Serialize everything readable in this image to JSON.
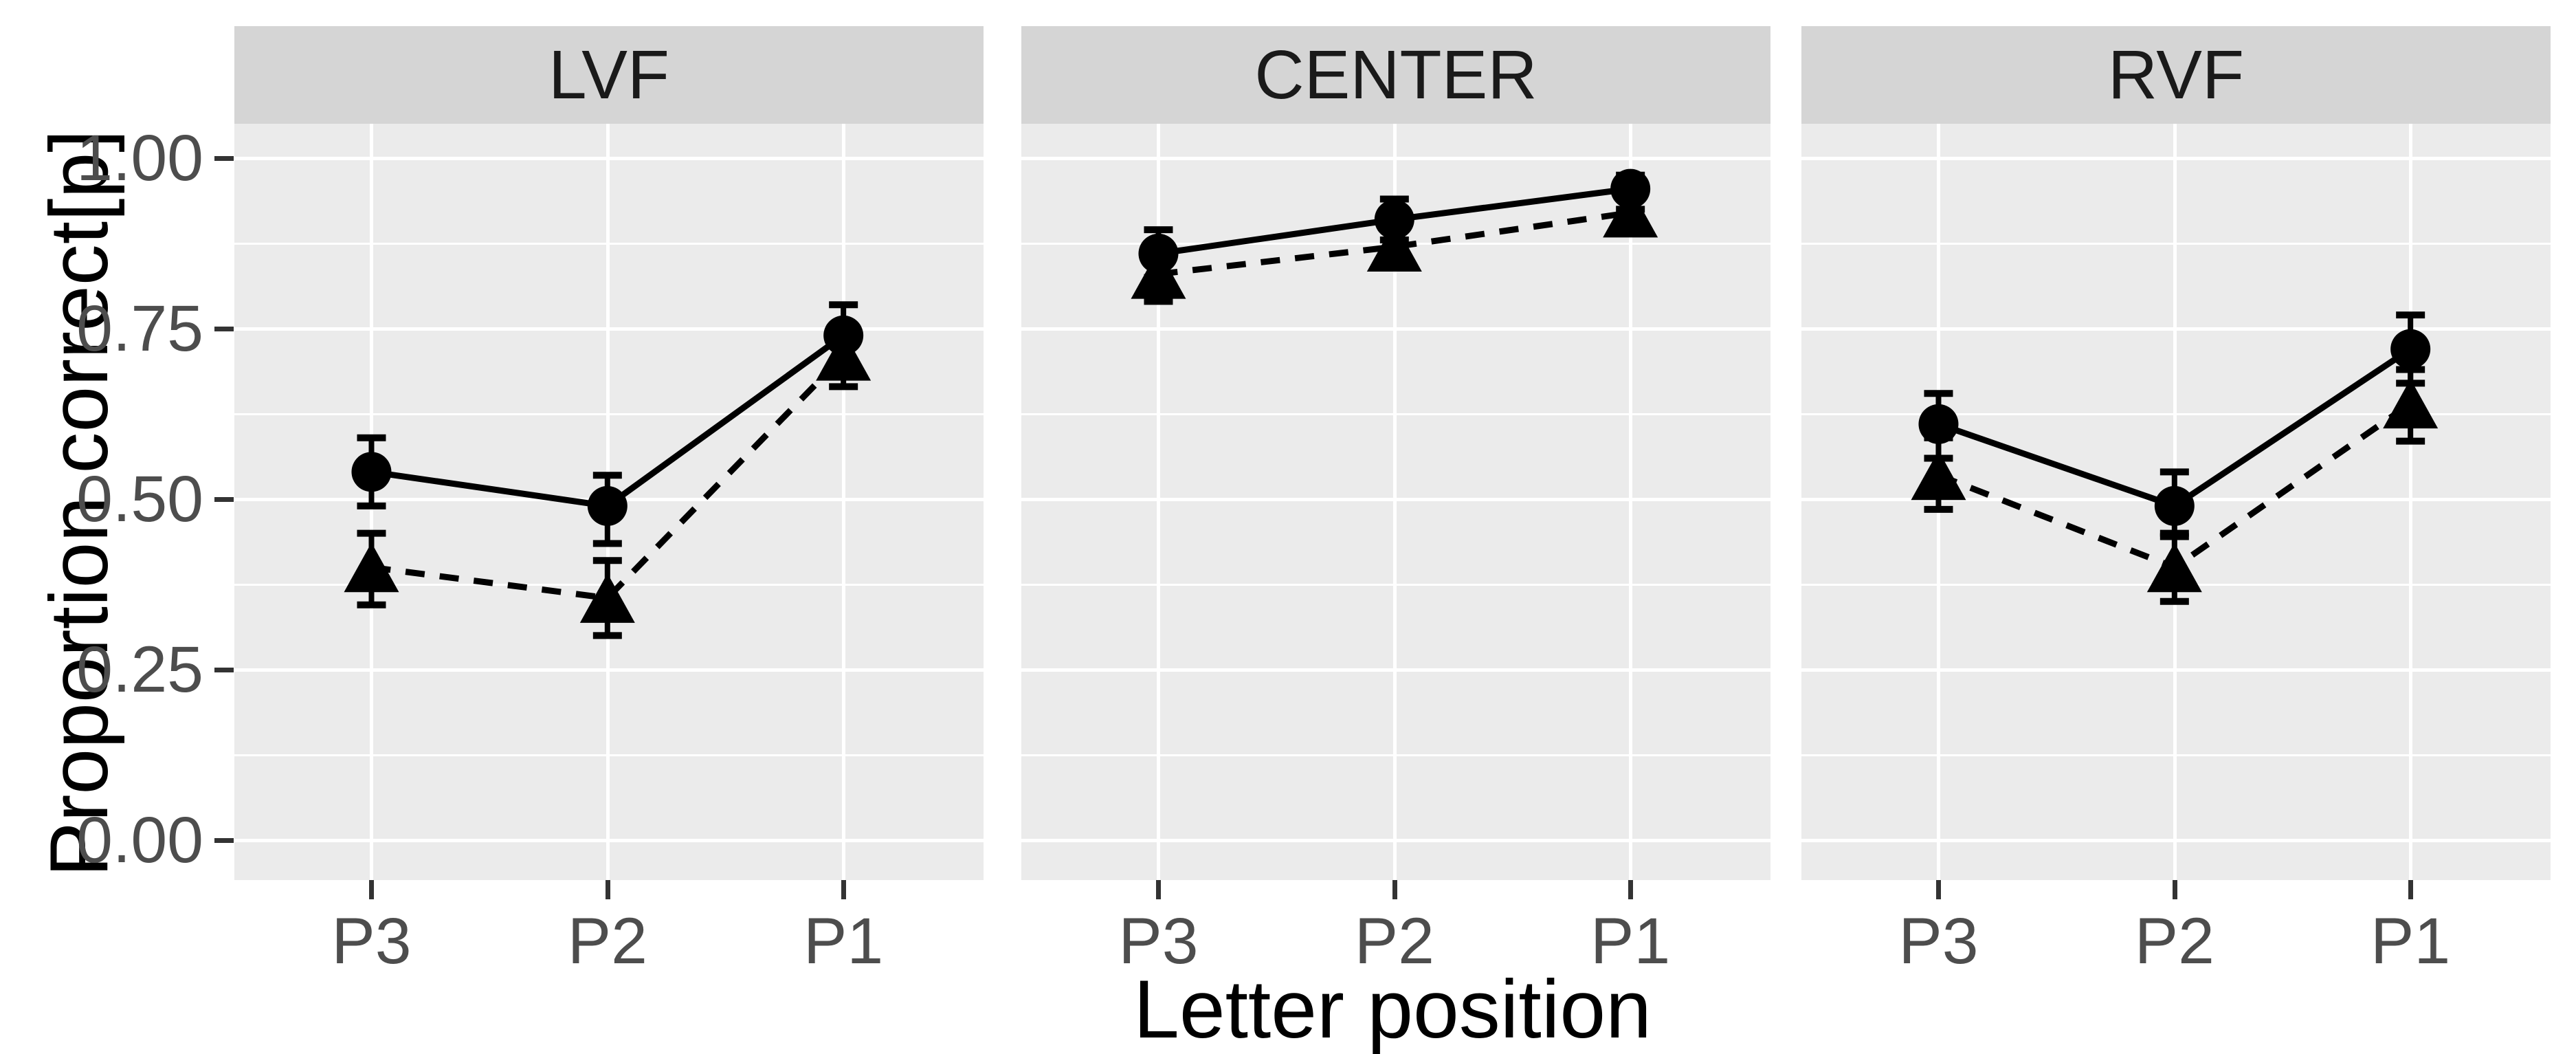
{
  "chart_data": {
    "type": "line",
    "title": "",
    "xlabel": "Letter position",
    "ylabel": "Proportion correct[p]",
    "ylim": [
      0,
      1.05
    ],
    "yticks": [
      1.0,
      0.75,
      0.5,
      0.25,
      0.0
    ],
    "ytick_labels": [
      "1.00",
      "0.75",
      "0.50",
      "0.25",
      "0.00"
    ],
    "minor_gridlines": [
      0.875,
      0.625,
      0.375,
      0.125
    ],
    "categories": [
      "P3",
      "P2",
      "P1"
    ],
    "grid": true,
    "legend": false,
    "facets": [
      {
        "label": "LVF",
        "series": [
          {
            "name": "dashed-triangle-series",
            "marker": "triangle",
            "linestyle": "dashed",
            "values": [
              0.4,
              0.355,
              0.71
            ],
            "ci_low": [
              0.345,
              0.3,
              0.665
            ],
            "ci_high": [
              0.45,
              0.41,
              0.755
            ]
          },
          {
            "name": "solid-circle-series",
            "marker": "circle",
            "linestyle": "solid",
            "values": [
              0.54,
              0.49,
              0.74
            ],
            "ci_low": [
              0.49,
              0.435,
              0.69
            ],
            "ci_high": [
              0.59,
              0.535,
              0.785
            ]
          }
        ]
      },
      {
        "label": "CENTER",
        "series": [
          {
            "name": "dashed-triangle-series",
            "marker": "triangle",
            "linestyle": "dashed",
            "values": [
              0.83,
              0.87,
              0.92
            ],
            "ci_low": [
              0.79,
              0.84,
              0.89
            ],
            "ci_high": [
              0.865,
              0.9,
              0.945
            ]
          },
          {
            "name": "solid-circle-series",
            "marker": "circle",
            "linestyle": "solid",
            "values": [
              0.86,
              0.91,
              0.955
            ],
            "ci_low": [
              0.825,
              0.88,
              0.925
            ],
            "ci_high": [
              0.895,
              0.94,
              0.975
            ]
          }
        ]
      },
      {
        "label": "RVF",
        "series": [
          {
            "name": "dashed-triangle-series",
            "marker": "triangle",
            "linestyle": "dashed",
            "values": [
              0.535,
              0.4,
              0.64
            ],
            "ci_low": [
              0.485,
              0.35,
              0.585
            ],
            "ci_high": [
              0.59,
              0.45,
              0.69
            ]
          },
          {
            "name": "solid-circle-series",
            "marker": "circle",
            "linestyle": "solid",
            "values": [
              0.61,
              0.49,
              0.72
            ],
            "ci_low": [
              0.56,
              0.445,
              0.67
            ],
            "ci_high": [
              0.655,
              0.54,
              0.77
            ]
          }
        ]
      }
    ],
    "colors": {
      "panel_background": "#ebebeb",
      "strip_background": "#d5d5d5",
      "gridline": "#ffffff",
      "tick_mark": "#333333",
      "tick_label": "#4d4d4d",
      "strip_text": "#1a1a1a",
      "axis_title": "#000000",
      "data": "#000000"
    }
  }
}
